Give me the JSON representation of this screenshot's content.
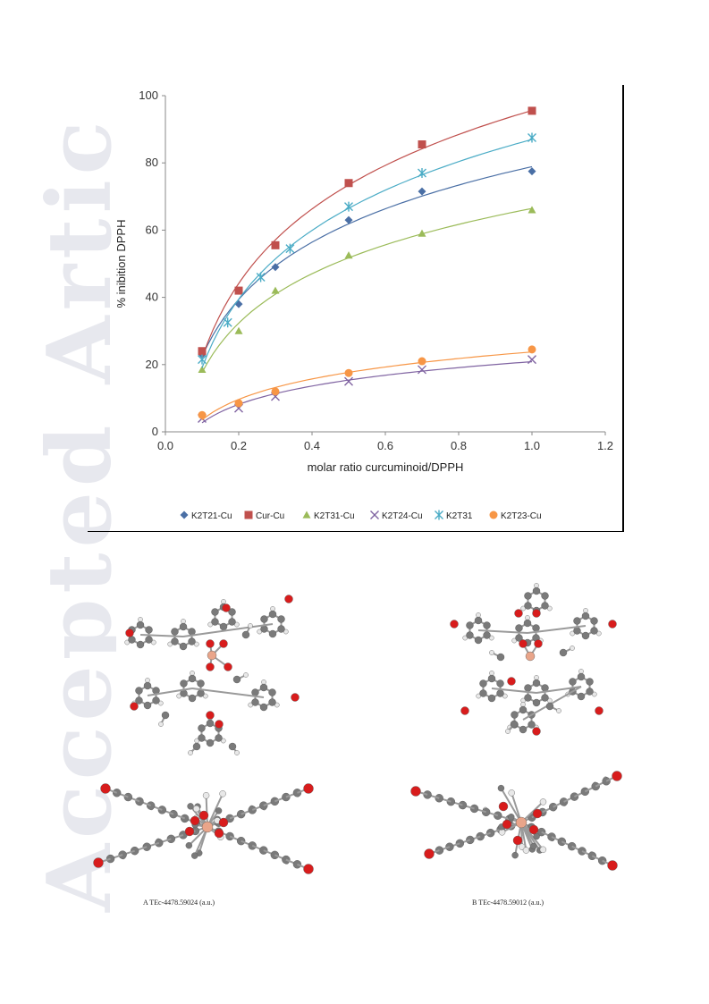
{
  "watermark": "Accepted Article",
  "chart_data": {
    "type": "scatter",
    "xlabel": "molar ratio curcuminoid/DPPH",
    "ylabel": "% inibition DPPH",
    "xlim": [
      0,
      1.2
    ],
    "ylim": [
      0,
      100
    ],
    "xticks": [
      "0.0",
      "0.2",
      "0.4",
      "0.6",
      "0.8",
      "1.0",
      "1.2"
    ],
    "yticks": [
      "0",
      "20",
      "40",
      "60",
      "80",
      "100"
    ],
    "grid": false,
    "legend_position": "bottom",
    "trendlines": "logarithmic",
    "series": [
      {
        "name": "K2T21-Cu",
        "marker": "diamond",
        "color": "#4a6fa5",
        "x": [
          0.1,
          0.2,
          0.3,
          0.5,
          0.7,
          1.0
        ],
        "y": [
          23,
          38,
          49,
          63,
          71.5,
          77.5
        ]
      },
      {
        "name": "Cur-Cu",
        "marker": "square",
        "color": "#c0504d",
        "x": [
          0.1,
          0.2,
          0.3,
          0.5,
          0.7,
          1.0
        ],
        "y": [
          24,
          42,
          55.5,
          74,
          85.5,
          95.5
        ]
      },
      {
        "name": "K2T31-Cu",
        "marker": "triangle",
        "color": "#9bbb59",
        "x": [
          0.1,
          0.2,
          0.3,
          0.5,
          0.7,
          1.0
        ],
        "y": [
          18.5,
          30,
          42,
          52.5,
          59,
          66
        ]
      },
      {
        "name": "K2T24-Cu",
        "marker": "x",
        "color": "#8064a2",
        "x": [
          0.1,
          0.2,
          0.3,
          0.5,
          0.7,
          1.0
        ],
        "y": [
          4,
          7,
          10.5,
          15,
          18.5,
          21.5
        ]
      },
      {
        "name": "K2T31",
        "marker": "star",
        "color": "#4bacc6",
        "x": [
          0.1,
          0.17,
          0.26,
          0.34,
          0.5,
          0.7,
          1.0
        ],
        "y": [
          21.5,
          32.5,
          46,
          54.5,
          67,
          77,
          87.5
        ]
      },
      {
        "name": "K2T23-Cu",
        "marker": "circle",
        "color": "#f79646",
        "x": [
          0.1,
          0.2,
          0.3,
          0.5,
          0.7,
          1.0
        ],
        "y": [
          5,
          8.5,
          12,
          17.5,
          21,
          24.5
        ]
      }
    ]
  },
  "captions": {
    "a": "A   TEc-4478.59024 (a.u.)",
    "b": "B   TEc-4478.59012 (a.u.)"
  },
  "colors": {
    "oxygen": "#d81c1c",
    "carbon": "#7a7a7a",
    "hydrogen": "#e8e8e8",
    "copper": "#e9a58a",
    "bond": "#9a9a9a"
  }
}
